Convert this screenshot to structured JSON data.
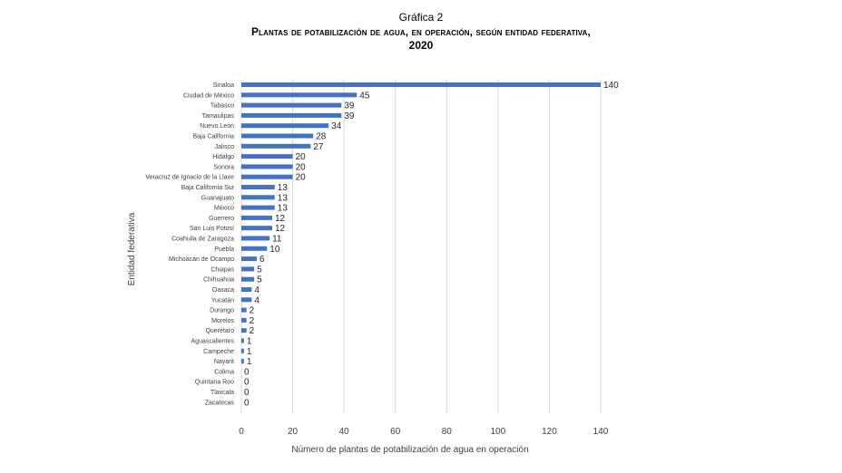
{
  "header": {
    "kicker": "Gráfica 2",
    "title": "Plantas de potabilización de agua, en operación, según entidad federativa,",
    "year": "2020"
  },
  "colors": {
    "bar": "#4472C4",
    "grid": "#d9d9d9",
    "text": "#404040"
  },
  "chart_data": {
    "type": "bar",
    "orientation": "horizontal",
    "title": "Plantas de potabilización de agua, en operación, según entidad federativa, 2020",
    "xlabel": "Número de plantas de potabilización de agua en operación",
    "ylabel": "Entidad federativa",
    "xlim": [
      0,
      140
    ],
    "xticks": [
      0,
      20,
      40,
      60,
      80,
      100,
      120,
      140
    ],
    "grid": "vertical",
    "data_labels": true,
    "categories": [
      "Sinaloa",
      "Ciudad de México",
      "Tabasco",
      "Tamaulipas",
      "Nuevo León",
      "Baja California",
      "Jalisco",
      "Hidalgo",
      "Sonora",
      "Veracruz de Ignacio de la Llave",
      "Baja California Sur",
      "Guanajuato",
      "México",
      "Guerrero",
      "San Luis Potosí",
      "Coahuila de Zaragoza",
      "Puebla",
      "Michoacán de Ocampo",
      "Chiapas",
      "Chihuahua",
      "Oaxaca",
      "Yucatán",
      "Durango",
      "Morelos",
      "Querétaro",
      "Aguascalientes",
      "Campeche",
      "Nayarit",
      "Colima",
      "Quintana Roo",
      "Tlaxcala",
      "Zacatecas"
    ],
    "values": [
      140,
      45,
      39,
      39,
      34,
      28,
      27,
      20,
      20,
      20,
      13,
      13,
      13,
      12,
      12,
      11,
      10,
      6,
      5,
      5,
      4,
      4,
      2,
      2,
      2,
      1,
      1,
      1,
      0,
      0,
      0,
      0
    ]
  }
}
